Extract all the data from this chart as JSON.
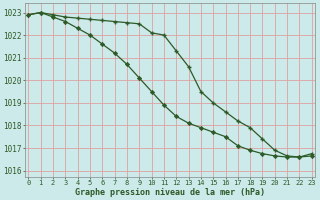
{
  "title": "Graphe pression niveau de la mer (hPa)",
  "bg_color": "#cceaea",
  "grid_color": "#dda0a0",
  "line_color": "#2d5a27",
  "series_plus": {
    "x": [
      0,
      1,
      2,
      3,
      4,
      5,
      6,
      7,
      8,
      9,
      10,
      11,
      12,
      13,
      14,
      15,
      16,
      17,
      18,
      19,
      20,
      21,
      22,
      23
    ],
    "y": [
      1022.9,
      1023.0,
      1022.9,
      1022.8,
      1022.75,
      1022.7,
      1022.65,
      1022.6,
      1022.55,
      1022.5,
      1022.1,
      1022.0,
      1021.3,
      1020.6,
      1019.5,
      1019.0,
      1018.6,
      1018.2,
      1017.9,
      1017.4,
      1016.9,
      1016.65,
      1016.6,
      1016.75
    ]
  },
  "series_diamond": {
    "x": [
      0,
      1,
      2,
      3,
      4,
      5,
      6,
      7,
      8,
      9,
      10,
      11,
      12,
      13,
      14,
      15,
      16,
      17,
      18,
      19,
      20,
      21,
      22,
      23
    ],
    "y": [
      1022.9,
      1023.0,
      1022.8,
      1022.6,
      1022.3,
      1022.0,
      1021.6,
      1021.2,
      1020.7,
      1020.1,
      1019.5,
      1018.9,
      1018.4,
      1018.1,
      1017.9,
      1017.7,
      1017.5,
      1017.1,
      1016.9,
      1016.75,
      1016.65,
      1016.6,
      1016.6,
      1016.65
    ]
  },
  "ylim": [
    1015.7,
    1023.4
  ],
  "yticks": [
    1016,
    1017,
    1018,
    1019,
    1020,
    1021,
    1022,
    1023
  ],
  "xlim": [
    -0.3,
    23.3
  ],
  "xticks": [
    0,
    1,
    2,
    3,
    4,
    5,
    6,
    7,
    8,
    9,
    10,
    11,
    12,
    13,
    14,
    15,
    16,
    17,
    18,
    19,
    20,
    21,
    22,
    23
  ]
}
